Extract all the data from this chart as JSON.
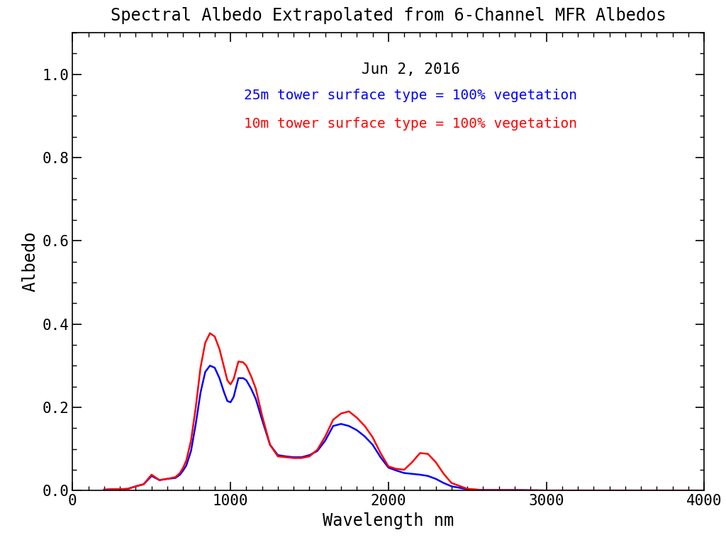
{
  "title": "Spectral Albedo Extrapolated from 6-Channel MFR Albedos",
  "xlabel": "Wavelength nm",
  "ylabel": "Albedo",
  "date_label": "Jun 2, 2016",
  "label_25m": "25m tower surface type = 100% vegetation",
  "label_10m": "10m tower surface type = 100% vegetation",
  "color_25m": "#0000ff",
  "color_10m": "#ff0000",
  "xlim": [
    0,
    4000
  ],
  "ylim": [
    0.0,
    1.1
  ],
  "yticks": [
    0.0,
    0.2,
    0.4,
    0.6,
    0.8,
    1.0
  ],
  "xticks": [
    0,
    1000,
    2000,
    3000,
    4000
  ],
  "background": "#ffffff",
  "wavelengths": [
    200,
    250,
    300,
    350,
    400,
    450,
    500,
    550,
    600,
    650,
    680,
    700,
    720,
    750,
    780,
    810,
    840,
    870,
    900,
    930,
    960,
    980,
    1000,
    1020,
    1050,
    1080,
    1100,
    1130,
    1160,
    1200,
    1250,
    1300,
    1350,
    1400,
    1450,
    1500,
    1550,
    1600,
    1650,
    1700,
    1750,
    1800,
    1850,
    1900,
    1950,
    2000,
    2050,
    2100,
    2150,
    2200,
    2250,
    2300,
    2350,
    2400,
    2500,
    2600,
    2700,
    2800,
    3000,
    3500,
    4000
  ],
  "albedo_25m": [
    0.002,
    0.003,
    0.003,
    0.004,
    0.01,
    0.015,
    0.035,
    0.025,
    0.028,
    0.03,
    0.038,
    0.048,
    0.06,
    0.095,
    0.16,
    0.235,
    0.285,
    0.3,
    0.295,
    0.27,
    0.235,
    0.215,
    0.212,
    0.225,
    0.27,
    0.27,
    0.265,
    0.245,
    0.22,
    0.17,
    0.11,
    0.085,
    0.082,
    0.08,
    0.08,
    0.085,
    0.095,
    0.12,
    0.155,
    0.16,
    0.155,
    0.145,
    0.13,
    0.11,
    0.08,
    0.055,
    0.048,
    0.042,
    0.04,
    0.038,
    0.035,
    0.028,
    0.018,
    0.01,
    0.003,
    0.001,
    0.001,
    0.001,
    0.0,
    0.0,
    0.0
  ],
  "albedo_10m": [
    0.002,
    0.003,
    0.003,
    0.004,
    0.01,
    0.015,
    0.038,
    0.025,
    0.028,
    0.032,
    0.042,
    0.055,
    0.072,
    0.12,
    0.2,
    0.295,
    0.355,
    0.378,
    0.37,
    0.34,
    0.295,
    0.265,
    0.255,
    0.268,
    0.31,
    0.308,
    0.3,
    0.275,
    0.245,
    0.18,
    0.11,
    0.082,
    0.08,
    0.078,
    0.078,
    0.082,
    0.098,
    0.13,
    0.17,
    0.185,
    0.19,
    0.175,
    0.155,
    0.128,
    0.09,
    0.058,
    0.052,
    0.05,
    0.068,
    0.09,
    0.088,
    0.068,
    0.04,
    0.018,
    0.004,
    0.001,
    0.001,
    0.001,
    0.0,
    0.0,
    0.0
  ]
}
